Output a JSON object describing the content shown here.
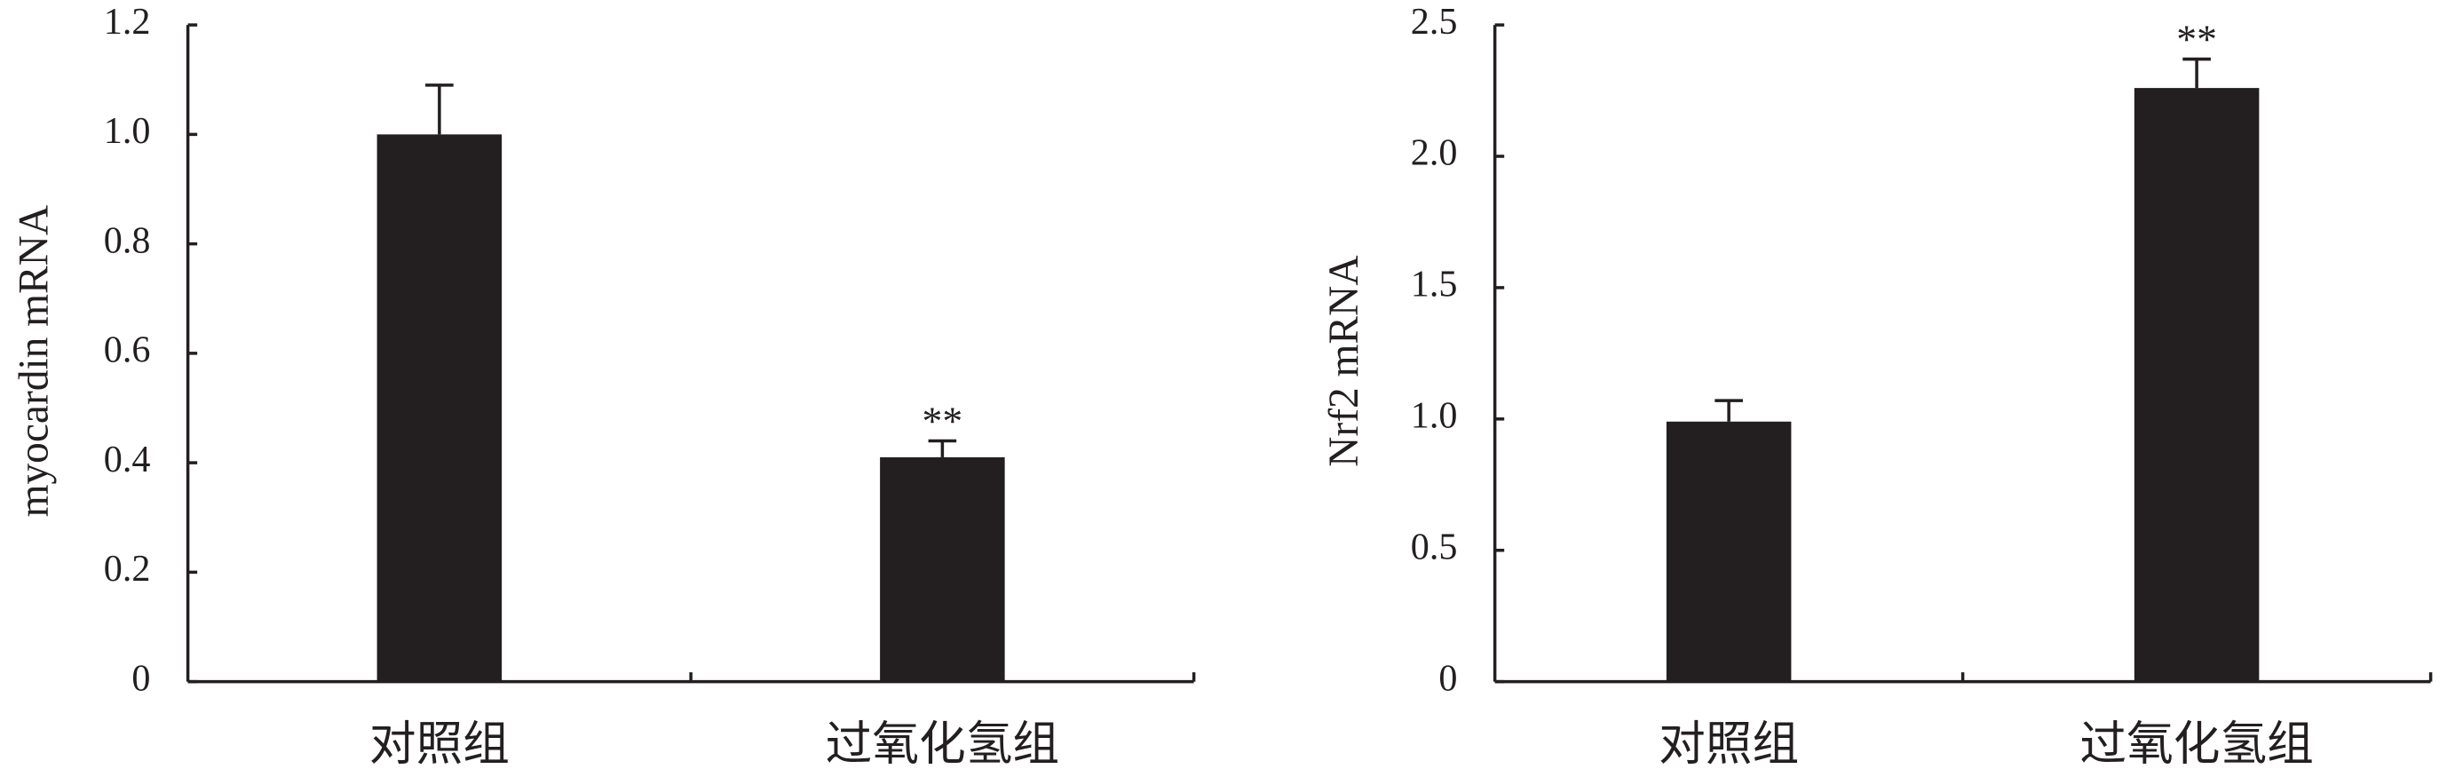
{
  "chart_data": [
    {
      "type": "bar",
      "y_label": "myocardin mRNA",
      "categories": [
        "对照组",
        "过氧化氢组"
      ],
      "values": [
        1.0,
        0.41
      ],
      "errors": [
        0.09,
        0.03
      ],
      "significance": [
        null,
        "**"
      ],
      "color": "#231f20",
      "ylim": [
        0,
        1.2
      ],
      "yticks": [
        0,
        0.2,
        0.4,
        0.6,
        0.8,
        {
          "value": 1,
          "label": "1.0"
        },
        1.2
      ]
    },
    {
      "type": "bar",
      "y_label": "Nrf2 mRNA",
      "categories": [
        "对照组",
        "过氧化氢组"
      ],
      "values": [
        0.99,
        2.26
      ],
      "errors": [
        0.08,
        0.11
      ],
      "significance": [
        null,
        "**"
      ],
      "color": "#231f20",
      "ylim": [
        0,
        2.5
      ],
      "yticks": [
        0,
        0.5,
        {
          "value": 1,
          "label": "1.0"
        },
        1.5,
        {
          "value": 2,
          "label": "2.0"
        },
        2.5
      ]
    }
  ]
}
